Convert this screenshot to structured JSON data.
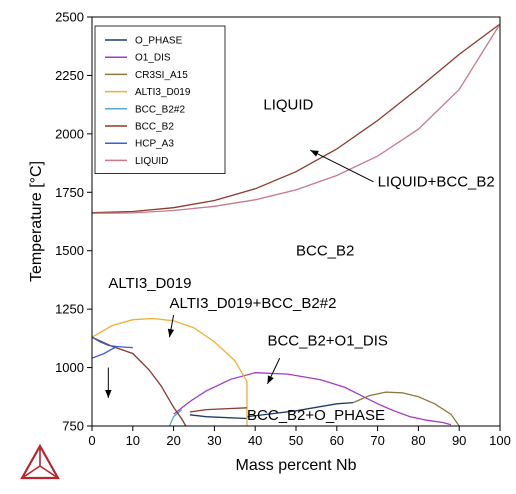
{
  "chart_data": {
    "type": "line",
    "title": "",
    "xlabel": "Mass percent Nb",
    "ylabel": "Temperature [°C]",
    "xlim": [
      0,
      100
    ],
    "ylim": [
      750,
      2500
    ],
    "xticks": [
      "0",
      "10",
      "20",
      "30",
      "40",
      "50",
      "60",
      "70",
      "80",
      "90",
      "100"
    ],
    "yticks": [
      "750",
      "1000",
      "1250",
      "1500",
      "1750",
      "2000",
      "2250",
      "2500"
    ],
    "grid": false,
    "legend_position": "top-left",
    "series": [
      {
        "name": "O_PHASE",
        "color": "#1f3a6e",
        "segments": [
          [
            [
              24,
              798
            ],
            [
              28,
              790
            ],
            [
              34,
              785
            ],
            [
              38,
              782
            ]
          ],
          [
            [
              38,
              790
            ],
            [
              50,
              815
            ],
            [
              60,
              845
            ],
            [
              64,
              850
            ]
          ]
        ]
      },
      {
        "name": "O1_DIS",
        "color": "#a23cc4",
        "segments": [
          [
            [
              20,
              800
            ],
            [
              24,
              855
            ],
            [
              28,
              900
            ],
            [
              34,
              950
            ],
            [
              40,
              978
            ],
            [
              48,
              972
            ],
            [
              56,
              948
            ],
            [
              62,
              915
            ],
            [
              66,
              880
            ],
            [
              70,
              845
            ],
            [
              74,
              815
            ],
            [
              78,
              790
            ],
            [
              82,
              775
            ],
            [
              86,
              765
            ],
            [
              88,
              755
            ]
          ]
        ]
      },
      {
        "name": "CR3SI_A15",
        "color": "#8c7a3a",
        "segments": [
          [
            [
              64,
              850
            ],
            [
              68,
              880
            ],
            [
              72,
              895
            ],
            [
              76,
              892
            ],
            [
              80,
              875
            ],
            [
              84,
              845
            ],
            [
              88,
              800
            ],
            [
              90,
              750
            ]
          ]
        ]
      },
      {
        "name": "ALTI3_D019",
        "color": "#f0b030",
        "segments": [
          [
            [
              0,
              1130
            ],
            [
              5,
              1180
            ],
            [
              10,
              1205
            ],
            [
              15,
              1210
            ],
            [
              20,
              1200
            ],
            [
              25,
              1170
            ],
            [
              30,
              1110
            ],
            [
              35,
              1030
            ],
            [
              38,
              940
            ],
            [
              38,
              750
            ]
          ]
        ]
      },
      {
        "name": "BCC_B2#2",
        "color": "#5aa7d6",
        "segments": [
          [
            [
              19,
              750
            ],
            [
              20,
              790
            ],
            [
              22,
              820
            ]
          ]
        ]
      },
      {
        "name": "BCC_B2",
        "color": "#8b3a2e",
        "segments": [
          [
            [
              0,
              1663
            ],
            [
              10,
              1668
            ],
            [
              20,
              1684
            ],
            [
              30,
              1715
            ],
            [
              40,
              1765
            ],
            [
              50,
              1838
            ],
            [
              60,
              1935
            ],
            [
              70,
              2057
            ],
            [
              80,
              2195
            ],
            [
              90,
              2340
            ],
            [
              100,
              2470
            ]
          ],
          [
            [
              0,
              1130
            ],
            [
              5,
              1090
            ],
            [
              10,
              1060
            ],
            [
              14,
              990
            ],
            [
              17,
              920
            ],
            [
              20,
              830
            ],
            [
              22,
              780
            ],
            [
              23,
              750
            ]
          ],
          [
            [
              24,
              810
            ],
            [
              28,
              820
            ],
            [
              34,
              825
            ],
            [
              38,
              828
            ]
          ]
        ]
      },
      {
        "name": "HCP_A3",
        "color": "#3a5fd6",
        "segments": [
          [
            [
              0,
              1040
            ],
            [
              3,
              1060
            ],
            [
              6,
              1090
            ],
            [
              10,
              1085
            ]
          ],
          [
            [
              0,
              1130
            ],
            [
              2,
              1110
            ],
            [
              4,
              1095
            ],
            [
              6,
              1090
            ]
          ]
        ]
      },
      {
        "name": "LIQUID",
        "color": "#c87a8a",
        "segments": [
          [
            [
              0,
              1660
            ],
            [
              10,
              1662
            ],
            [
              20,
              1672
            ],
            [
              30,
              1690
            ],
            [
              40,
              1718
            ],
            [
              50,
              1760
            ],
            [
              60,
              1822
            ],
            [
              70,
              1905
            ],
            [
              80,
              2020
            ],
            [
              90,
              2190
            ],
            [
              100,
              2470
            ]
          ]
        ]
      }
    ],
    "region_labels": [
      {
        "text": "LIQUID",
        "x": 42,
        "y": 2105
      },
      {
        "text": "LIQUID+BCC_B2",
        "x": 70,
        "y": 1775
      },
      {
        "text": "BCC_B2",
        "x": 50,
        "y": 1480
      },
      {
        "text": "ALTI3_D019",
        "x": 4,
        "y": 1340
      },
      {
        "text": "ALTI3_D019+BCC_B2#2",
        "x": 19,
        "y": 1255
      },
      {
        "text": "BCC_B2+O1_DIS",
        "x": 43,
        "y": 1095
      },
      {
        "text": "BCC_B2+O_PHASE",
        "x": 38,
        "y": 775
      }
    ],
    "arrows": [
      {
        "from": [
          69,
          1795
        ],
        "to": [
          53.5,
          1930
        ]
      },
      {
        "from": [
          4,
          1000
        ],
        "to": [
          4,
          870
        ]
      },
      {
        "from": [
          20,
          1225
        ],
        "to": [
          19,
          1130
        ]
      },
      {
        "from": [
          46,
          1040
        ],
        "to": [
          43,
          930
        ]
      }
    ]
  }
}
